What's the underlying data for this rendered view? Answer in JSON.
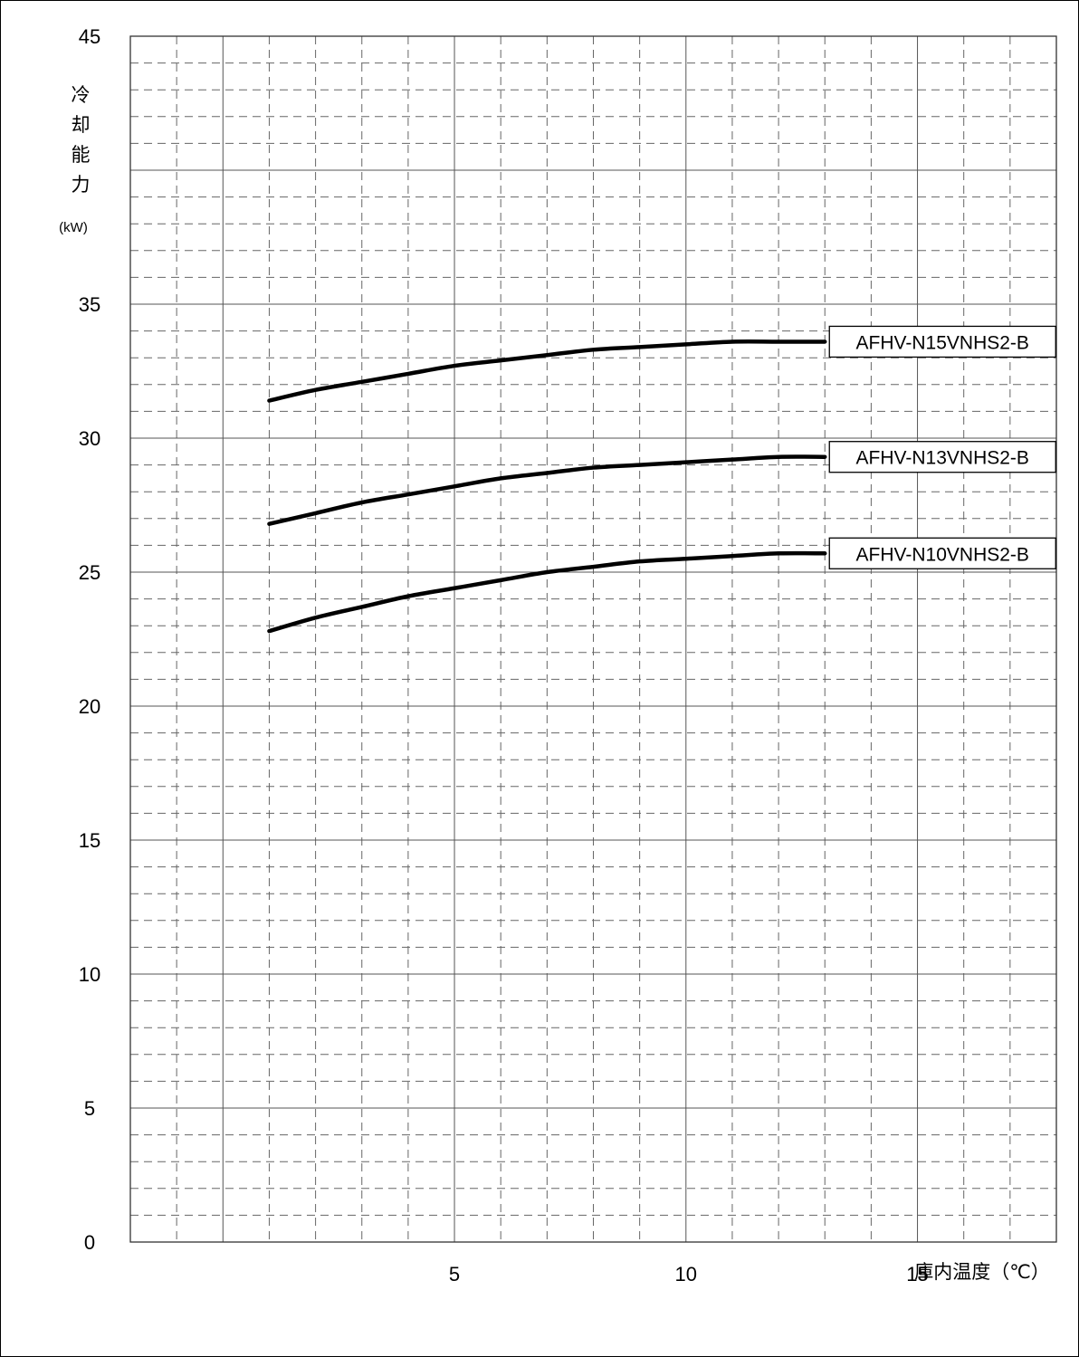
{
  "chart_data": {
    "type": "line",
    "ylabel_chars": [
      "冷",
      "却",
      "能",
      "力"
    ],
    "yunit": "(kW)",
    "xlabel": "庫内温度（℃）",
    "xlim": [
      -2,
      18
    ],
    "ylim": [
      0,
      45
    ],
    "xticks": [
      5,
      10,
      15
    ],
    "yticks": [
      0,
      5,
      10,
      15,
      20,
      25,
      30,
      35,
      45
    ],
    "grid": true,
    "series": [
      {
        "name": "AFHV-N15VNHS2-B",
        "x": [
          1,
          2,
          3,
          4,
          5,
          6,
          7,
          8,
          9,
          10,
          11,
          12,
          13
        ],
        "y": [
          31.4,
          31.8,
          32.1,
          32.4,
          32.7,
          32.9,
          33.1,
          33.3,
          33.4,
          33.5,
          33.6,
          33.6,
          33.6
        ]
      },
      {
        "name": "AFHV-N13VNHS2-B",
        "x": [
          1,
          2,
          3,
          4,
          5,
          6,
          7,
          8,
          9,
          10,
          11,
          12,
          13
        ],
        "y": [
          26.8,
          27.2,
          27.6,
          27.9,
          28.2,
          28.5,
          28.7,
          28.9,
          29.0,
          29.1,
          29.2,
          29.3,
          29.3
        ]
      },
      {
        "name": "AFHV-N10VNHS2-B",
        "x": [
          1,
          2,
          3,
          4,
          5,
          6,
          7,
          8,
          9,
          10,
          11,
          12,
          13
        ],
        "y": [
          22.8,
          23.3,
          23.7,
          24.1,
          24.4,
          24.7,
          25.0,
          25.2,
          25.4,
          25.5,
          25.6,
          25.7,
          25.7
        ]
      }
    ]
  }
}
